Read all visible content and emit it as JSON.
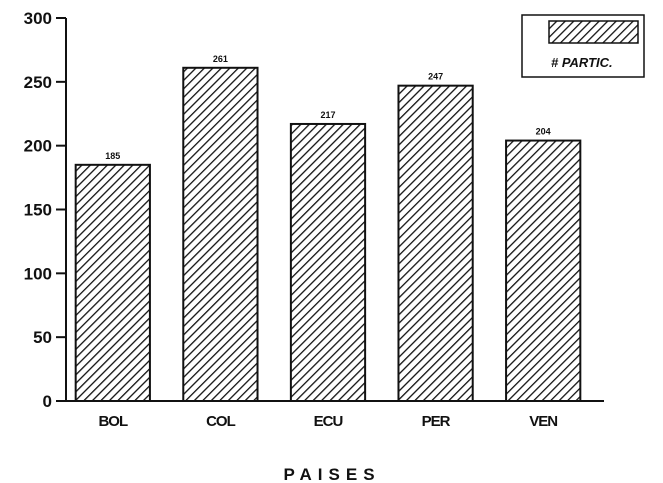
{
  "chart_data": {
    "type": "bar",
    "categories": [
      "BOL",
      "COL",
      "ECU",
      "PER",
      "VEN"
    ],
    "series": [
      {
        "name": "# PARTIC.",
        "values": [
          185,
          261,
          217,
          247,
          204
        ]
      }
    ],
    "data_labels": [
      "185",
      "261",
      "217",
      "247",
      "204"
    ],
    "xlabel": "PAISES",
    "ylabel": "",
    "ylim": [
      0,
      300
    ],
    "yticks": [
      0,
      50,
      100,
      150,
      200,
      250,
      300
    ],
    "grid": false,
    "legend_position": "top-right",
    "bar_fill": "diagonal-hatch",
    "colors": {
      "ink": "#111111",
      "background": "#ffffff"
    }
  }
}
